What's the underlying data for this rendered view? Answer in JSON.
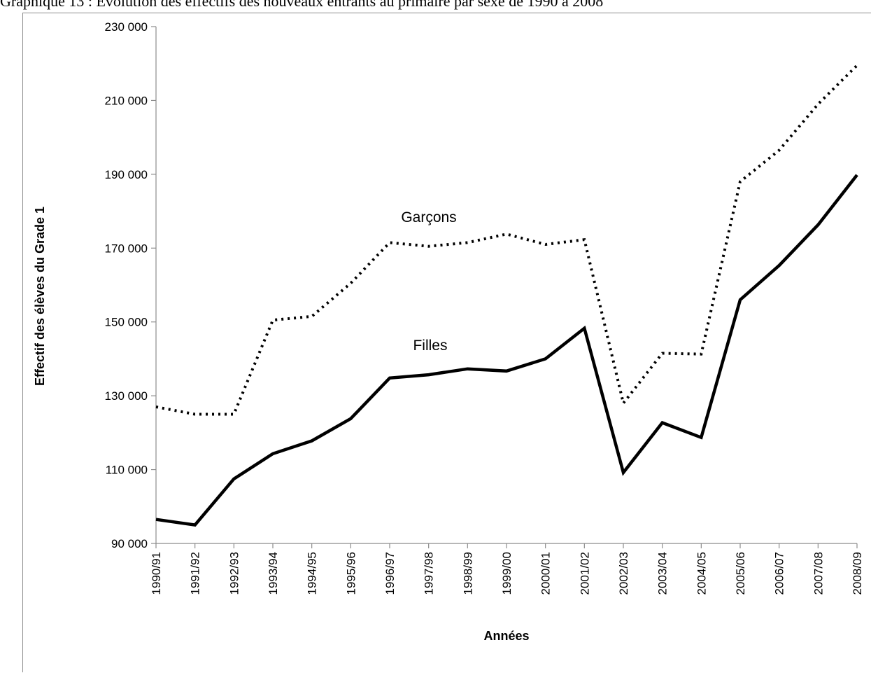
{
  "title": "Graphique 13 : Évolution des effectifs des nouveaux entrants au primaire par sexe de 1990 à 2008",
  "chart_data": {
    "type": "line",
    "title": "Graphique 13 : Évolution des effectifs des nouveaux entrants au primaire par sexe de 1990 à 2008",
    "xlabel": "Années",
    "ylabel": "Effectif des élèves du Grade 1",
    "ylim": [
      90000,
      230000
    ],
    "yticks": [
      90000,
      110000,
      130000,
      150000,
      170000,
      190000,
      210000,
      230000
    ],
    "ytick_labels": [
      "90 000",
      "110 000",
      "130 000",
      "150 000",
      "170 000",
      "190 000",
      "210 000",
      "230 000"
    ],
    "categories": [
      "1990/91",
      "1991/92",
      "1992/93",
      "1993/94",
      "1994/95",
      "1995/96",
      "1996/97",
      "1997/98",
      "1998/99",
      "1999/00",
      "2000/01",
      "2001/02",
      "2002/03",
      "2003/04",
      "2004/05",
      "2005/06",
      "2006/07",
      "2007/08",
      "2008/09"
    ],
    "series": [
      {
        "name": "Garçons",
        "style": "dotted",
        "color": "#000000",
        "values": [
          127000,
          125000,
          125000,
          150500,
          151500,
          160500,
          171500,
          170500,
          171500,
          173800,
          171000,
          172300,
          128000,
          141500,
          141300,
          188000,
          196500,
          209000,
          219500
        ]
      },
      {
        "name": "Filles",
        "style": "solid",
        "color": "#000000",
        "values": [
          96500,
          95000,
          107500,
          114300,
          117800,
          123800,
          134800,
          135700,
          137300,
          136700,
          140000,
          148300,
          109200,
          122700,
          118700,
          156000,
          165300,
          176300,
          189800
        ]
      }
    ],
    "grid": false,
    "legend": "inline labels"
  }
}
